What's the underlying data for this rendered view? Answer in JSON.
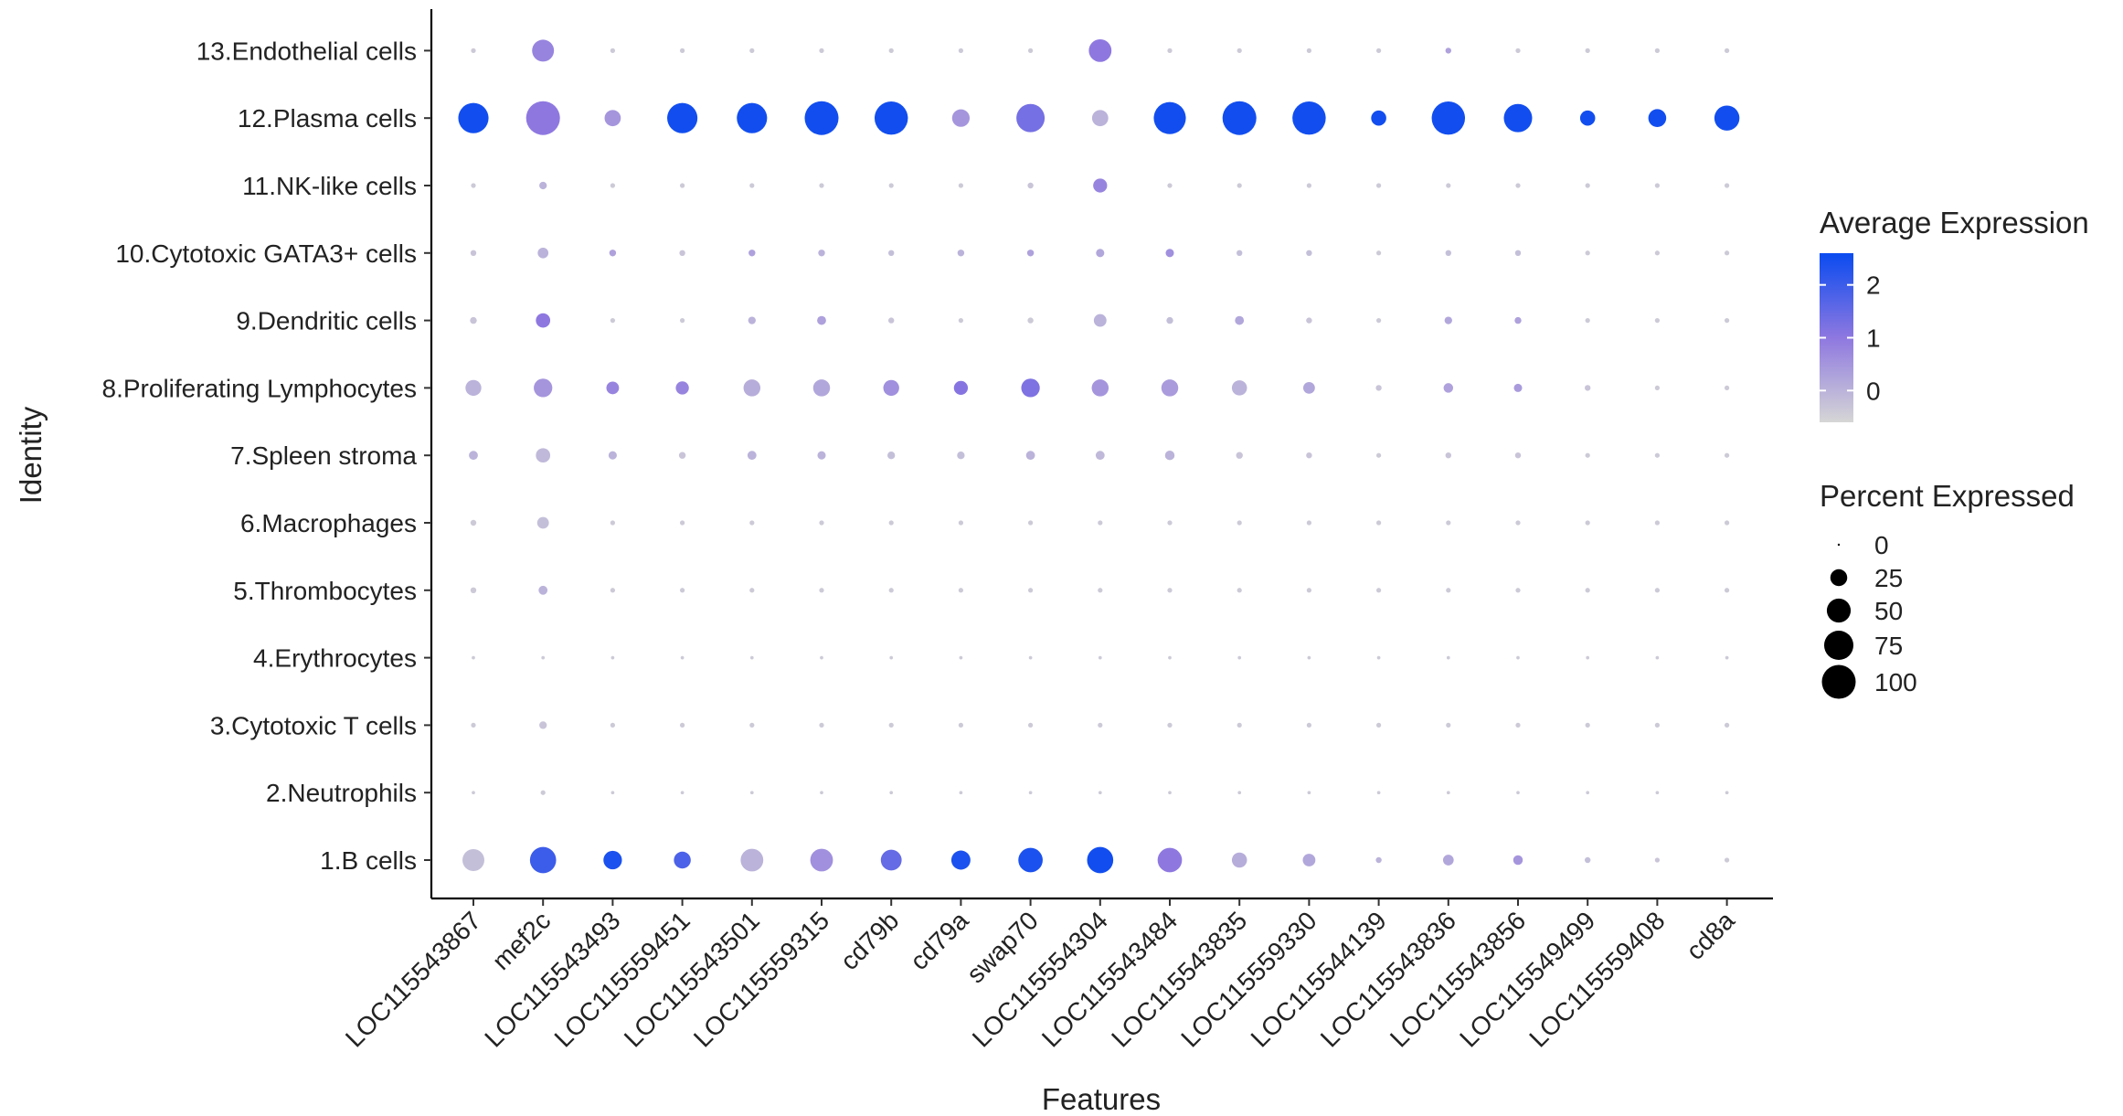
{
  "chart_data": {
    "type": "dotplot",
    "xlabel": "Features",
    "ylabel": "Identity",
    "features": [
      "LOC115543867",
      "mef2c",
      "LOC115543493",
      "LOC115559451",
      "LOC115543501",
      "LOC115559315",
      "cd79b",
      "cd79a",
      "swap70",
      "LOC115554304",
      "LOC115543484",
      "LOC115543835",
      "LOC115559330",
      "LOC115544139",
      "LOC115543836",
      "LOC115543856",
      "LOC115549499",
      "LOC115559408",
      "cd8a"
    ],
    "identities": [
      "1.B cells",
      "2.Neutrophils",
      "3.Cytotoxic T cells",
      "4.Erythrocytes",
      "5.Thrombocytes",
      "6.Macrophages",
      "7.Spleen stroma",
      "8.Proliferating Lymphocytes",
      "9.Dendritic cells",
      "10.Cytotoxic GATA3+ cells",
      "11.NK-like cells",
      "12.Plasma cells",
      "13.Endothelial cells"
    ],
    "percent_expressed": [
      [
        42,
        60,
        30,
        25,
        45,
        45,
        38,
        32,
        52,
        60,
        52,
        20,
        14,
        3,
        10,
        8,
        3,
        2,
        2
      ],
      [
        1,
        2,
        1,
        1,
        1,
        1,
        1,
        1,
        1,
        1,
        1,
        1,
        1,
        1,
        1,
        1,
        1,
        1,
        1
      ],
      [
        2,
        5,
        2,
        2,
        2,
        2,
        2,
        2,
        2,
        2,
        2,
        2,
        2,
        2,
        2,
        2,
        2,
        2,
        2
      ],
      [
        1,
        1,
        1,
        1,
        1,
        1,
        1,
        1,
        1,
        1,
        1,
        1,
        1,
        1,
        1,
        1,
        1,
        1,
        1
      ],
      [
        3,
        7,
        2,
        2,
        2,
        2,
        2,
        2,
        2,
        2,
        2,
        2,
        2,
        2,
        2,
        2,
        2,
        2,
        2
      ],
      [
        3,
        12,
        2,
        2,
        2,
        2,
        2,
        2,
        2,
        2,
        2,
        2,
        2,
        2,
        2,
        2,
        2,
        2,
        2
      ],
      [
        7,
        18,
        6,
        4,
        7,
        6,
        5,
        5,
        7,
        7,
        8,
        4,
        3,
        2,
        3,
        3,
        2,
        2,
        2
      ],
      [
        22,
        30,
        14,
        15,
        25,
        25,
        22,
        17,
        30,
        25,
        25,
        20,
        12,
        3,
        8,
        6,
        3,
        2,
        2
      ],
      [
        4,
        18,
        2,
        2,
        5,
        7,
        3,
        2,
        3,
        14,
        4,
        7,
        3,
        2,
        5,
        4,
        2,
        2,
        2
      ],
      [
        3,
        10,
        4,
        3,
        4,
        4,
        3,
        4,
        4,
        6,
        6,
        3,
        3,
        2,
        3,
        3,
        2,
        2,
        2
      ],
      [
        2,
        5,
        2,
        2,
        2,
        2,
        2,
        2,
        3,
        17,
        2,
        2,
        2,
        2,
        2,
        2,
        2,
        2,
        2
      ],
      [
        80,
        100,
        23,
        80,
        80,
        100,
        97,
        27,
        70,
        23,
        90,
        100,
        97,
        20,
        97,
        70,
        20,
        28,
        55
      ],
      [
        2,
        42,
        2,
        2,
        2,
        2,
        2,
        2,
        2,
        45,
        2,
        2,
        2,
        2,
        3,
        2,
        2,
        2,
        2
      ]
    ],
    "average_expression": [
      [
        -0.2,
        2.0,
        2.4,
        1.8,
        0.0,
        0.6,
        1.5,
        2.4,
        2.4,
        2.5,
        1.0,
        0.1,
        0.2,
        0.0,
        0.2,
        0.5,
        -0.2,
        -0.3,
        -0.4
      ],
      [
        -0.4,
        -0.4,
        -0.4,
        -0.4,
        -0.4,
        -0.4,
        -0.4,
        -0.4,
        -0.4,
        -0.4,
        -0.4,
        -0.4,
        -0.4,
        -0.4,
        -0.4,
        -0.4,
        -0.4,
        -0.4,
        -0.4
      ],
      [
        -0.4,
        -0.3,
        -0.4,
        -0.4,
        -0.4,
        -0.4,
        -0.4,
        -0.4,
        -0.4,
        -0.4,
        -0.4,
        -0.4,
        -0.4,
        -0.4,
        -0.4,
        -0.4,
        -0.4,
        -0.4,
        -0.4
      ],
      [
        -0.4,
        -0.4,
        -0.4,
        -0.4,
        -0.4,
        -0.4,
        -0.4,
        -0.4,
        -0.4,
        -0.4,
        -0.4,
        -0.4,
        -0.4,
        -0.4,
        -0.4,
        -0.4,
        -0.4,
        -0.4,
        -0.4
      ],
      [
        -0.4,
        0.0,
        -0.4,
        -0.4,
        -0.4,
        -0.4,
        -0.4,
        -0.4,
        -0.4,
        -0.4,
        -0.4,
        -0.4,
        -0.4,
        -0.4,
        -0.4,
        -0.4,
        -0.4,
        -0.4,
        -0.4
      ],
      [
        -0.4,
        -0.2,
        -0.4,
        -0.4,
        -0.4,
        -0.4,
        -0.4,
        -0.4,
        -0.4,
        -0.4,
        -0.4,
        -0.4,
        -0.4,
        -0.4,
        -0.4,
        -0.4,
        -0.4,
        -0.4,
        -0.4
      ],
      [
        0.0,
        -0.1,
        0.0,
        -0.3,
        0.0,
        0.0,
        -0.2,
        -0.2,
        0.0,
        -0.1,
        0.0,
        -0.3,
        -0.3,
        -0.4,
        -0.3,
        -0.3,
        -0.4,
        -0.4,
        -0.4
      ],
      [
        0.0,
        0.5,
        0.8,
        0.8,
        0.1,
        0.2,
        0.6,
        1.1,
        1.2,
        0.5,
        0.4,
        0.0,
        0.2,
        -0.3,
        0.3,
        0.4,
        -0.3,
        -0.4,
        -0.4
      ],
      [
        -0.3,
        1.0,
        -0.4,
        -0.4,
        0.0,
        0.3,
        -0.3,
        -0.4,
        -0.4,
        0.0,
        -0.2,
        0.2,
        -0.3,
        -0.4,
        0.2,
        0.3,
        -0.4,
        -0.4,
        -0.4
      ],
      [
        -0.3,
        0.0,
        0.3,
        -0.3,
        0.3,
        0.0,
        -0.2,
        0.0,
        0.3,
        0.2,
        0.6,
        -0.2,
        -0.2,
        -0.4,
        -0.2,
        -0.2,
        -0.4,
        -0.4,
        -0.4
      ],
      [
        -0.4,
        0.0,
        -0.4,
        -0.4,
        -0.4,
        -0.4,
        -0.4,
        -0.4,
        -0.3,
        0.8,
        -0.4,
        -0.4,
        -0.4,
        -0.4,
        -0.4,
        -0.4,
        -0.4,
        -0.4,
        -0.4
      ],
      [
        2.5,
        1.0,
        0.5,
        2.5,
        2.5,
        2.5,
        2.5,
        0.5,
        1.3,
        0.0,
        2.5,
        2.5,
        2.5,
        2.5,
        2.5,
        2.5,
        2.5,
        2.5,
        2.5
      ],
      [
        -0.4,
        0.8,
        -0.4,
        -0.4,
        -0.4,
        -0.4,
        -0.4,
        -0.4,
        -0.4,
        1.0,
        -0.4,
        -0.4,
        -0.4,
        -0.4,
        0.3,
        -0.4,
        -0.4,
        -0.4,
        -0.4
      ]
    ],
    "color_scale": {
      "low": "#d6d6d6",
      "mid": "#8e78e0",
      "high": "#0a4bf0",
      "min": -0.6,
      "max": 2.6
    },
    "legend": {
      "color_title": "Average Expression",
      "color_ticks": [
        {
          "value": 2,
          "label": "2"
        },
        {
          "value": 1,
          "label": "1"
        },
        {
          "value": 0,
          "label": "0"
        }
      ],
      "size_title": "Percent Expressed",
      "size_entries": [
        {
          "value": 0,
          "label": "0"
        },
        {
          "value": 25,
          "label": "25"
        },
        {
          "value": 50,
          "label": "50"
        },
        {
          "value": 75,
          "label": "75"
        },
        {
          "value": 100,
          "label": "100"
        }
      ],
      "placement": "right"
    },
    "grid": false
  }
}
